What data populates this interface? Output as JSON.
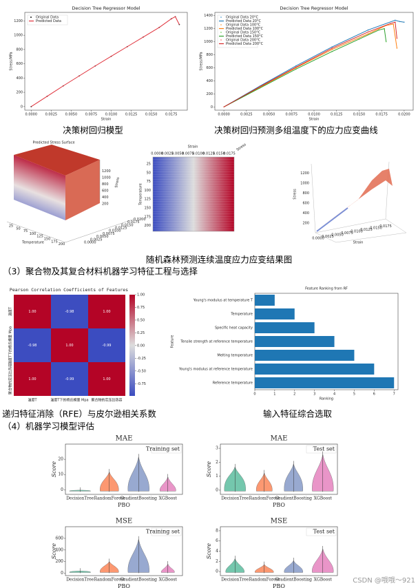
{
  "captions": {
    "dt": "决策树回归模型",
    "dt_multi": "决策树回归预测多组温度下的应力应变曲线",
    "rf": "随机森林预测连续温度应力应变结果图",
    "section3": "（3）聚合物及其复合材料机器学习特征工程与选择",
    "rfe": "递归特征消除（RFE）与皮尔逊相关系数",
    "select": "输入特征综合选取",
    "section4": "（4）机器学习模型评估",
    "watermark": "CSDN @哦哦～921"
  },
  "dt_chart": {
    "type": "line",
    "title": "Decision Tree Regressor Model",
    "xlabel": "Strain",
    "ylabel": "Stress/MPa",
    "xlim": [
      -0.0008,
      0.0195
    ],
    "ylim": [
      -50,
      1320
    ],
    "xticks": [
      {
        "value": 0,
        "label": "0.0000"
      },
      {
        "value": 0.0025,
        "label": "0.0025"
      },
      {
        "value": 0.005,
        "label": "0.0050"
      },
      {
        "value": 0.0075,
        "label": "0.0075"
      },
      {
        "value": 0.01,
        "label": "0.0100"
      },
      {
        "value": 0.0125,
        "label": "0.0125"
      },
      {
        "value": 0.015,
        "label": "0.0150"
      },
      {
        "value": 0.0175,
        "label": "0.0175"
      }
    ],
    "yticks": [
      0,
      200,
      400,
      600,
      800,
      1000,
      1200
    ],
    "series": [
      {
        "name": "Original Data",
        "color": "#1a1a1a",
        "marker": true,
        "x": [
          0,
          0.002,
          0.004,
          0.006,
          0.008,
          0.01,
          0.012,
          0.014,
          0.016,
          0.0175,
          0.018,
          0.0185
        ],
        "values": [
          0,
          145,
          290,
          430,
          570,
          705,
          840,
          975,
          1110,
          1230,
          1260,
          1150
        ]
      },
      {
        "name": "Predicted Data",
        "color": "#e0303a",
        "marker": false,
        "x": [
          0,
          0.002,
          0.004,
          0.006,
          0.008,
          0.01,
          0.012,
          0.014,
          0.016,
          0.0175,
          0.018,
          0.0185
        ],
        "values": [
          0,
          145,
          290,
          430,
          570,
          705,
          840,
          975,
          1110,
          1230,
          1260,
          1150
        ]
      }
    ]
  },
  "dt_multi_chart": {
    "type": "line",
    "title": "Decision Tree Regressor Model",
    "xlabel": "Strain",
    "ylabel": "Stress/MPa",
    "xlim": [
      -0.001,
      0.021
    ],
    "ylim": [
      -50,
      1450
    ],
    "xticks": [
      {
        "value": 0,
        "label": "0.0000"
      },
      {
        "value": 0.0025,
        "label": "0.0025"
      },
      {
        "value": 0.005,
        "label": "0.0050"
      },
      {
        "value": 0.0075,
        "label": "0.0075"
      },
      {
        "value": 0.01,
        "label": "0.0100"
      },
      {
        "value": 0.0125,
        "label": "0.0125"
      },
      {
        "value": 0.015,
        "label": "0.0150"
      },
      {
        "value": 0.0175,
        "label": "0.0175"
      },
      {
        "value": 0.02,
        "label": "0.0200"
      }
    ],
    "yticks": [
      0,
      200,
      400,
      600,
      800,
      1000,
      1200,
      1400
    ],
    "series": [
      {
        "name": "Original Data 20°C",
        "color": "#7fb8e0",
        "marker": true,
        "x": [
          0,
          0.004,
          0.008,
          0.012,
          0.016,
          0.019,
          0.0195,
          0.02
        ],
        "values": [
          0,
          320,
          630,
          920,
          1180,
          1330,
          1310,
          1300
        ]
      },
      {
        "name": "Predicted Data 20°C",
        "color": "#1f77b4",
        "marker": false,
        "x": [
          0,
          0.004,
          0.008,
          0.012,
          0.016,
          0.019,
          0.0195,
          0.02
        ],
        "values": [
          0,
          320,
          630,
          920,
          1180,
          1330,
          1310,
          1300
        ]
      },
      {
        "name": "Original Data 100°C",
        "color": "#ffbb78",
        "marker": true,
        "x": [
          0,
          0.004,
          0.008,
          0.012,
          0.016,
          0.018,
          0.0188,
          0.0192
        ],
        "values": [
          0,
          300,
          600,
          880,
          1120,
          1250,
          1270,
          900
        ]
      },
      {
        "name": "Predicted Data 100°C",
        "color": "#ff7f0e",
        "marker": false,
        "x": [
          0,
          0.004,
          0.008,
          0.012,
          0.016,
          0.018,
          0.0188,
          0.0192
        ],
        "values": [
          0,
          300,
          600,
          880,
          1120,
          1250,
          1270,
          900
        ]
      },
      {
        "name": "Original Data 150°C",
        "color": "#98df8a",
        "marker": true,
        "x": [
          0,
          0.004,
          0.008,
          0.012,
          0.015,
          0.0172,
          0.0178,
          0.018
        ],
        "values": [
          0,
          290,
          580,
          850,
          1040,
          1180,
          1200,
          1000
        ]
      },
      {
        "name": "Predicted Data 150°C",
        "color": "#2ca02c",
        "marker": false,
        "x": [
          0,
          0.004,
          0.008,
          0.012,
          0.015,
          0.0172,
          0.0178,
          0.018
        ],
        "values": [
          0,
          290,
          580,
          850,
          1040,
          1180,
          1200,
          1000
        ]
      },
      {
        "name": "Original Data 200°C",
        "color": "#ff9896",
        "marker": true,
        "x": [
          0,
          0.004,
          0.008,
          0.012,
          0.016,
          0.0185,
          0.019,
          0.0192
        ],
        "values": [
          0,
          310,
          610,
          900,
          1150,
          1280,
          1300,
          1050
        ]
      },
      {
        "name": "Predicted Data 200°C",
        "color": "#d62728",
        "marker": false,
        "x": [
          0,
          0.004,
          0.008,
          0.012,
          0.016,
          0.0185,
          0.019,
          0.0192
        ],
        "values": [
          0,
          310,
          610,
          900,
          1150,
          1280,
          1300,
          1050
        ]
      }
    ]
  },
  "surface": {
    "title": "Predicted Stress Surface",
    "xlabel": "Temperature",
    "zlabel": "Stress",
    "xticks": [
      25,
      50,
      75,
      100,
      125,
      150,
      175,
      200
    ],
    "yticks": [
      "0.0000",
      "0.0025",
      "0.0050",
      "0.0075",
      "0.0100",
      "0.0125",
      "0.0150",
      "0.0175",
      "0.0200"
    ],
    "zticks": [
      200,
      400,
      600,
      800,
      1000,
      1200
    ]
  },
  "heat3d": {
    "xlabel": "Strain",
    "ylabel": "Temperature",
    "zlabel": "Stress",
    "xticks": [
      "0.0000",
      "0.0025",
      "0.0050",
      "0.0075",
      "0.0100",
      "0.0125",
      "0.0150",
      "0.0175"
    ],
    "yticks": [
      25,
      50,
      75,
      100,
      125,
      150,
      175,
      200
    ]
  },
  "scatter3d": {
    "xlabel": "Strain",
    "zlabel": "Stress",
    "xticks": [
      "0.0000",
      "0.0025",
      "0.0050",
      "0.0075",
      "0.0100",
      "0.0125",
      "0.0150",
      "0.0175"
    ],
    "zticks": [
      200,
      400,
      600,
      800,
      1000,
      1200
    ]
  },
  "correlation": {
    "title": "Pearson Correlation Coefficients of Features",
    "labels": [
      "温度T",
      "温度T下的杨氏模量 Mpa",
      "聚合物的定压比热容"
    ],
    "values": [
      [
        1,
        -0.98,
        1
      ],
      [
        -0.98,
        1,
        -0.99
      ],
      [
        1,
        -0.99,
        1
      ]
    ],
    "value_labels": [
      [
        "1.00",
        "-0.98",
        "1.00"
      ],
      [
        "-0.98",
        "1.00",
        "-0.99"
      ],
      [
        "1.00",
        "-0.99",
        "1.00"
      ]
    ],
    "clim": [
      -0.99,
      1
    ],
    "cticks": [
      {
        "value": 1,
        "label": "1.00"
      },
      {
        "value": 0.75,
        "label": "0.75"
      },
      {
        "value": 0.5,
        "label": "0.50"
      },
      {
        "value": 0.25,
        "label": "0.25"
      },
      {
        "value": 0,
        "label": "0.00"
      },
      {
        "value": -0.25,
        "label": "-0.25"
      },
      {
        "value": -0.5,
        "label": "-0.50"
      },
      {
        "value": -0.75,
        "label": "-0.75"
      }
    ]
  },
  "ranking": {
    "type": "barh",
    "title": "Feature Ranking from RF",
    "xlabel": "Ranking",
    "ylabel": "Feature",
    "color": "#1f77b4",
    "categories": [
      "Young's modulus at temperature T",
      "Temperature",
      "Specific heat capacity",
      "Tensile strength at reference temperature",
      "Melting temperature",
      "Young's modulus at reference temperature",
      "Reference temperature"
    ],
    "values": [
      1,
      2,
      3,
      4,
      5,
      6,
      7
    ],
    "xlim": [
      0,
      7.2
    ],
    "xticks": [
      0,
      1,
      2,
      3,
      4,
      5,
      6,
      7
    ]
  },
  "evaluation": {
    "ylabel": "Score",
    "xlabel": "PBO",
    "categories": [
      "DecisionTree",
      "RandomForest",
      "GradientBoosting",
      "XGBoost"
    ],
    "colors": [
      "#66c2a5",
      "#fc8d62",
      "#8da0cb",
      "#e78ac3"
    ],
    "panels": [
      {
        "title": "MAE",
        "legend": "Training set",
        "ylim": [
          -3,
          30
        ],
        "yticks": [
          0,
          10,
          20
        ]
      },
      {
        "title": "MAE",
        "legend": "Test set",
        "ylim": [
          -0.3,
          3.3
        ],
        "yticks": [
          0,
          1,
          2,
          3
        ]
      },
      {
        "title": "MSE",
        "legend": "Training set",
        "ylim": [
          -40,
          800
        ],
        "yticks": [
          0,
          200,
          400,
          600
        ]
      },
      {
        "title": "MSE",
        "legend": "Test set",
        "ylim": [
          -0.8,
          8.8
        ],
        "yticks": [
          0,
          2,
          4,
          6,
          8
        ]
      }
    ]
  }
}
